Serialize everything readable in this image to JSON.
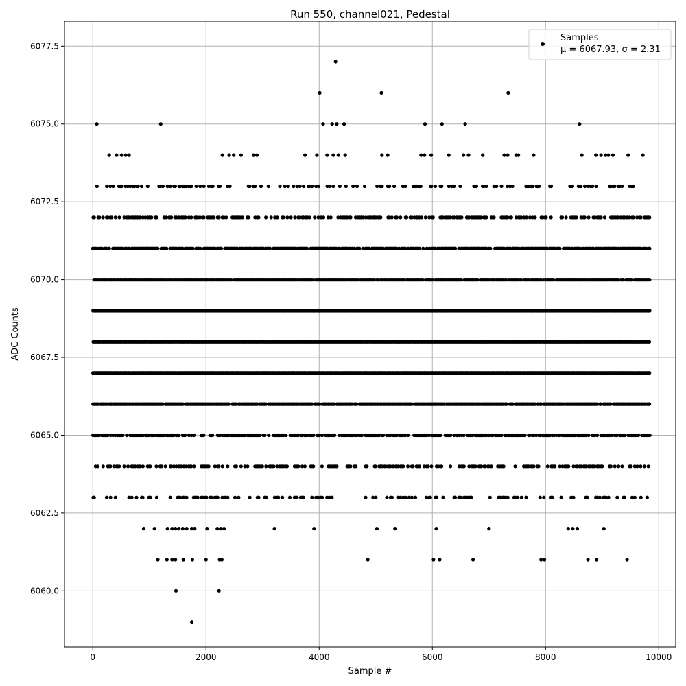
{
  "chart_data": {
    "type": "scatter",
    "title": "Run 550, channel021, Pedestal",
    "xlabel": "Sample #",
    "ylabel": "ADC Counts",
    "xlim": [
      -500,
      10300
    ],
    "ylim": [
      6058.2,
      6078.3
    ],
    "x_ticks": [
      0,
      2000,
      4000,
      6000,
      8000,
      10000
    ],
    "y_ticks": [
      6060.0,
      6062.5,
      6065.0,
      6067.5,
      6070.0,
      6072.5,
      6075.0,
      6077.5
    ],
    "grid": true,
    "legend": {
      "position": "top-right",
      "entries": [
        {
          "label": "Samples",
          "detail": "μ = 6067.93, σ = 2.31",
          "marker": "dot",
          "color": "#000000"
        }
      ]
    },
    "series": [
      {
        "name": "Samples",
        "color": "#000000",
        "x_range": [
          0,
          9850
        ],
        "dense_levels": [
          {
            "y": 6063,
            "x_start": 0,
            "x_end": 9850,
            "density": 0.3
          },
          {
            "y": 6064,
            "x_start": 0,
            "x_end": 9850,
            "density": 0.5
          },
          {
            "y": 6065,
            "x_start": 0,
            "x_end": 9850,
            "density": 0.75
          },
          {
            "y": 6066,
            "x_start": 0,
            "x_end": 9850,
            "density": 0.95
          },
          {
            "y": 6067,
            "x_start": 0,
            "x_end": 9850,
            "density": 1.0
          },
          {
            "y": 6068,
            "x_start": 0,
            "x_end": 9850,
            "density": 1.0
          },
          {
            "y": 6069,
            "x_start": 0,
            "x_end": 9850,
            "density": 1.0
          },
          {
            "y": 6070,
            "x_start": 0,
            "x_end": 9850,
            "density": 0.95
          },
          {
            "y": 6071,
            "x_start": 0,
            "x_end": 9850,
            "density": 0.8
          },
          {
            "y": 6072,
            "x_start": 0,
            "x_end": 9850,
            "density": 0.55
          },
          {
            "y": 6073,
            "x_start": 0,
            "x_end": 9850,
            "density": 0.25
          }
        ],
        "points": [
          {
            "x": 70,
            "y": 6075
          },
          {
            "x": 1200,
            "y": 6075
          },
          {
            "x": 4010,
            "y": 6076
          },
          {
            "x": 4290,
            "y": 6077
          },
          {
            "x": 4070,
            "y": 6075
          },
          {
            "x": 4230,
            "y": 6075
          },
          {
            "x": 4310,
            "y": 6075
          },
          {
            "x": 4440,
            "y": 6075
          },
          {
            "x": 5100,
            "y": 6076
          },
          {
            "x": 5870,
            "y": 6075
          },
          {
            "x": 6170,
            "y": 6075
          },
          {
            "x": 6580,
            "y": 6075
          },
          {
            "x": 7340,
            "y": 6076
          },
          {
            "x": 8600,
            "y": 6075
          },
          {
            "x": 290,
            "y": 6074
          },
          {
            "x": 420,
            "y": 6074
          },
          {
            "x": 510,
            "y": 6074
          },
          {
            "x": 580,
            "y": 6074
          },
          {
            "x": 640,
            "y": 6074
          },
          {
            "x": 2290,
            "y": 6074
          },
          {
            "x": 2410,
            "y": 6074
          },
          {
            "x": 2490,
            "y": 6074
          },
          {
            "x": 2620,
            "y": 6074
          },
          {
            "x": 2840,
            "y": 6074
          },
          {
            "x": 2900,
            "y": 6074
          },
          {
            "x": 3750,
            "y": 6074
          },
          {
            "x": 3960,
            "y": 6074
          },
          {
            "x": 4140,
            "y": 6074
          },
          {
            "x": 4250,
            "y": 6074
          },
          {
            "x": 4340,
            "y": 6074
          },
          {
            "x": 4460,
            "y": 6074
          },
          {
            "x": 5110,
            "y": 6074
          },
          {
            "x": 5210,
            "y": 6074
          },
          {
            "x": 5800,
            "y": 6074
          },
          {
            "x": 5860,
            "y": 6074
          },
          {
            "x": 5980,
            "y": 6074
          },
          {
            "x": 6290,
            "y": 6074
          },
          {
            "x": 6550,
            "y": 6074
          },
          {
            "x": 6640,
            "y": 6074
          },
          {
            "x": 6890,
            "y": 6074
          },
          {
            "x": 7270,
            "y": 6074
          },
          {
            "x": 7330,
            "y": 6074
          },
          {
            "x": 7480,
            "y": 6074
          },
          {
            "x": 7520,
            "y": 6074
          },
          {
            "x": 7790,
            "y": 6074
          },
          {
            "x": 8640,
            "y": 6074
          },
          {
            "x": 8890,
            "y": 6074
          },
          {
            "x": 8980,
            "y": 6074
          },
          {
            "x": 9060,
            "y": 6074
          },
          {
            "x": 9110,
            "y": 6074
          },
          {
            "x": 9190,
            "y": 6074
          },
          {
            "x": 9460,
            "y": 6074
          },
          {
            "x": 9720,
            "y": 6074
          },
          {
            "x": 900,
            "y": 6062
          },
          {
            "x": 1090,
            "y": 6062
          },
          {
            "x": 1320,
            "y": 6062
          },
          {
            "x": 1400,
            "y": 6062
          },
          {
            "x": 1460,
            "y": 6062
          },
          {
            "x": 1520,
            "y": 6062
          },
          {
            "x": 1590,
            "y": 6062
          },
          {
            "x": 1660,
            "y": 6062
          },
          {
            "x": 1750,
            "y": 6062
          },
          {
            "x": 1800,
            "y": 6062
          },
          {
            "x": 2020,
            "y": 6062
          },
          {
            "x": 2200,
            "y": 6062
          },
          {
            "x": 2260,
            "y": 6062
          },
          {
            "x": 2320,
            "y": 6062
          },
          {
            "x": 3210,
            "y": 6062
          },
          {
            "x": 3910,
            "y": 6062
          },
          {
            "x": 5020,
            "y": 6062
          },
          {
            "x": 5340,
            "y": 6062
          },
          {
            "x": 6070,
            "y": 6062
          },
          {
            "x": 7000,
            "y": 6062
          },
          {
            "x": 8400,
            "y": 6062
          },
          {
            "x": 8480,
            "y": 6062
          },
          {
            "x": 8560,
            "y": 6062
          },
          {
            "x": 9030,
            "y": 6062
          },
          {
            "x": 1150,
            "y": 6061
          },
          {
            "x": 1310,
            "y": 6061
          },
          {
            "x": 1400,
            "y": 6061
          },
          {
            "x": 1460,
            "y": 6061
          },
          {
            "x": 1600,
            "y": 6061
          },
          {
            "x": 1760,
            "y": 6061
          },
          {
            "x": 2000,
            "y": 6061
          },
          {
            "x": 2240,
            "y": 6061
          },
          {
            "x": 2280,
            "y": 6061
          },
          {
            "x": 4860,
            "y": 6061
          },
          {
            "x": 6020,
            "y": 6061
          },
          {
            "x": 6130,
            "y": 6061
          },
          {
            "x": 6720,
            "y": 6061
          },
          {
            "x": 7920,
            "y": 6061
          },
          {
            "x": 7980,
            "y": 6061
          },
          {
            "x": 8750,
            "y": 6061
          },
          {
            "x": 8900,
            "y": 6061
          },
          {
            "x": 9440,
            "y": 6061
          },
          {
            "x": 1470,
            "y": 6060
          },
          {
            "x": 2230,
            "y": 6060
          },
          {
            "x": 1750,
            "y": 6059
          }
        ]
      }
    ]
  }
}
